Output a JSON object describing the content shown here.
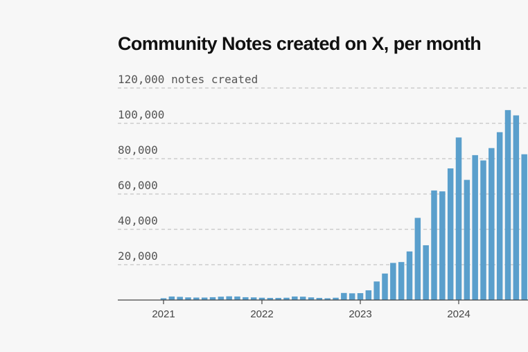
{
  "chart_data": {
    "type": "bar",
    "title": "Community Notes created on X, per month",
    "y_unit_label": "notes created",
    "ylim": [
      0,
      120000
    ],
    "yticks": [
      {
        "value": 120000,
        "label": "120,000 notes created"
      },
      {
        "value": 100000,
        "label": "100,000"
      },
      {
        "value": 80000,
        "label": "80,000"
      },
      {
        "value": 60000,
        "label": "60,000"
      },
      {
        "value": 40000,
        "label": "40,000"
      },
      {
        "value": 20000,
        "label": "20,000"
      }
    ],
    "xticks": [
      "2021",
      "2022",
      "2023",
      "2024"
    ],
    "grid": true,
    "color": "#5a9fcc",
    "categories": [
      "2021-01",
      "2021-02",
      "2021-03",
      "2021-04",
      "2021-05",
      "2021-06",
      "2021-07",
      "2021-08",
      "2021-09",
      "2021-10",
      "2021-11",
      "2021-12",
      "2022-01",
      "2022-02",
      "2022-03",
      "2022-04",
      "2022-05",
      "2022-06",
      "2022-07",
      "2022-08",
      "2022-09",
      "2022-10",
      "2022-11",
      "2022-12",
      "2023-01",
      "2023-02",
      "2023-03",
      "2023-04",
      "2023-05",
      "2023-06",
      "2023-07",
      "2023-08",
      "2023-09",
      "2023-10",
      "2023-11",
      "2023-12",
      "2024-01",
      "2024-02",
      "2024-03",
      "2024-04",
      "2024-05",
      "2024-06",
      "2024-07",
      "2024-08",
      "2024-09"
    ],
    "values": [
      1000,
      2000,
      1800,
      1500,
      1400,
      1400,
      1600,
      1900,
      2100,
      2000,
      1600,
      1500,
      1300,
      1200,
      1200,
      1300,
      2000,
      1900,
      1500,
      1200,
      1000,
      1300,
      4000,
      3800,
      3900,
      5500,
      10500,
      15000,
      21000,
      21500,
      27500,
      46500,
      31000,
      62000,
      61500,
      74500,
      92000,
      68000,
      82000,
      79000,
      86000,
      95000,
      107500,
      104500,
      82500
    ]
  }
}
